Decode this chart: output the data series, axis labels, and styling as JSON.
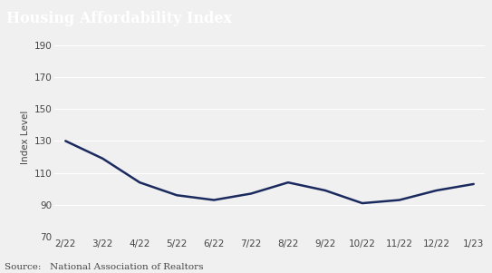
{
  "title": "Housing Affordability Index",
  "ylabel": "Index Level",
  "source": "Source:   National Association of Realtors",
  "x_labels": [
    "2/22",
    "3/22",
    "4/22",
    "5/22",
    "6/22",
    "7/22",
    "8/22",
    "9/22",
    "10/22",
    "11/22",
    "12/22",
    "1/23"
  ],
  "y_values": [
    130,
    119,
    104,
    96,
    93,
    97,
    104,
    99,
    91,
    93,
    99,
    103
  ],
  "ylim": [
    70,
    195
  ],
  "yticks": [
    70,
    90,
    110,
    130,
    150,
    170,
    190
  ],
  "line_color": "#1a2a5e",
  "line_width": 1.8,
  "title_bg_color": "#555555",
  "title_text_color": "#ffffff",
  "plot_bg_color": "#f0f0f0",
  "grid_color": "#ffffff",
  "tick_label_color": "#444444",
  "source_fontsize": 7.5,
  "ylabel_fontsize": 7.5,
  "ytick_fontsize": 7.5,
  "xtick_fontsize": 7.5,
  "title_fontsize": 11.5,
  "fig_width": 5.43,
  "fig_height": 3.01,
  "dpi": 100
}
